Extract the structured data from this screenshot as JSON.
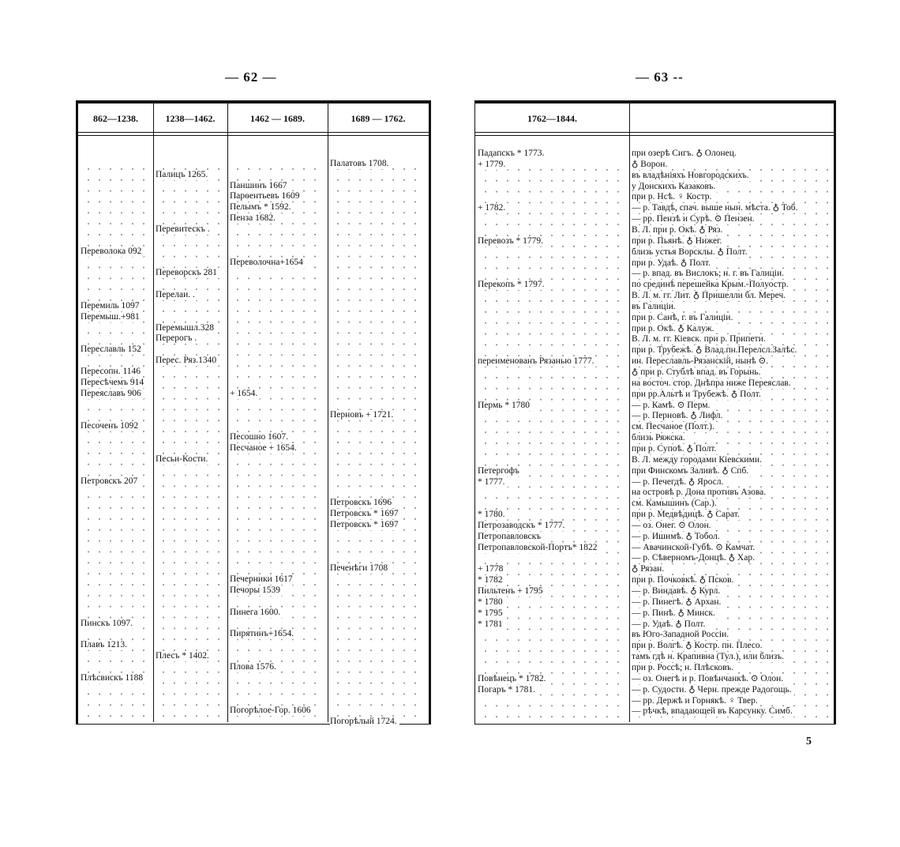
{
  "left_page": {
    "page_number": "— 62 —",
    "table": {
      "headers": [
        "862—1238.",
        "1238—1462.",
        "1462 — 1689.",
        "1689 — 1762."
      ],
      "rows": [
        null,
        [
          null,
          null,
          null,
          "Палатовъ 1708."
        ],
        [
          null,
          "Палицъ 1265.",
          null,
          null
        ],
        [
          null,
          null,
          "Паншинъ 1667",
          null
        ],
        [
          null,
          null,
          "Парѳентьевъ 1609",
          null
        ],
        [
          null,
          null,
          "Пелымъ * 1592.",
          null
        ],
        [
          null,
          null,
          "Пенза 1682.",
          null
        ],
        [
          null,
          "Перевитескъ .",
          null,
          null
        ],
        null,
        [
          "Переволока 092",
          null,
          null,
          null
        ],
        [
          null,
          null,
          "Переволочна+1654",
          null
        ],
        [
          null,
          "Переворскъ 281",
          null,
          null
        ],
        null,
        [
          null,
          "Перелаи. .",
          null,
          null
        ],
        [
          "Перемиль 1097",
          null,
          null,
          null
        ],
        [
          "Перемыш.+981",
          null,
          null,
          null
        ],
        [
          null,
          "Перемышл.328",
          null,
          null
        ],
        [
          null,
          "Перерогъ .",
          null,
          null
        ],
        [
          "Переславль 152",
          null,
          null,
          null
        ],
        [
          null,
          "Перес. Ряз.1340",
          null,
          null
        ],
        [
          "Пересопн. 1146",
          null,
          null,
          null
        ],
        [
          "Пересѣчемъ 914",
          null,
          null,
          null
        ],
        [
          "Переяславъ 906",
          null,
          "+ 1654.",
          null
        ],
        null,
        [
          null,
          null,
          null,
          "Перновъ + 1721."
        ],
        [
          "Песоченъ 1092",
          null,
          null,
          null
        ],
        [
          null,
          null,
          "Песошно 1607.",
          null
        ],
        [
          null,
          null,
          "Песчаное + 1654.",
          null
        ],
        [
          null,
          "Песьи-Кости.",
          null,
          null
        ],
        null,
        [
          "Петровскъ 207",
          null,
          null,
          null
        ],
        null,
        [
          null,
          null,
          null,
          "Петровскъ 1696"
        ],
        [
          null,
          null,
          null,
          "Петровскъ * 1697"
        ],
        [
          null,
          null,
          null,
          "Петровскъ * 1697"
        ],
        null,
        null,
        null,
        [
          null,
          null,
          null,
          "Печенѣги 1708"
        ],
        [
          null,
          null,
          "Печерники 1617",
          null
        ],
        [
          null,
          null,
          "Печоры 1539",
          null
        ],
        null,
        [
          null,
          null,
          "Пинега 1600.",
          null
        ],
        [
          "Пинскъ 1097.",
          null,
          null,
          null
        ],
        [
          null,
          null,
          "Пирятинъ+1654.",
          null
        ],
        [
          "Плавъ 1213.",
          null,
          null,
          null
        ],
        [
          null,
          "Плесъ * 1402.",
          null,
          null
        ],
        [
          null,
          null,
          "Плова 1576.",
          null
        ],
        [
          "Плѣсвискъ 1188",
          null,
          null,
          null
        ],
        null,
        null,
        [
          null,
          null,
          "Погорѣлое-Гор. 1606",
          null
        ],
        [
          null,
          null,
          null,
          "Погорѣлый 1724."
        ]
      ]
    }
  },
  "right_page": {
    "page_number": "— 63 --",
    "table": {
      "headers": [
        "1762—1844."
      ],
      "rows": [
        [
          "Падапскъ * 1773.",
          "при озерѣ Сигъ. ♁ Олонец."
        ],
        [
          "+ 1779.",
          "♁ Ворон."
        ],
        [
          null,
          "въ владѣніяхъ Новгородскихъ."
        ],
        [
          null,
          "у Донскихъ Казаковъ."
        ],
        [
          null,
          "при р. Нсѣ. ♀ Костр."
        ],
        [
          "+ 1782.",
          "— р. Тавдѣ, спач. выше нын. мѣста. ♁ Тоб."
        ],
        [
          null,
          "— рр. Пензѣ и Сурѣ. ⊙ Пензен."
        ],
        [
          null,
          "В. Л. при р. Окѣ. ♁ Ряз."
        ],
        [
          "Перевозъ * 1779.",
          "при р. Пьянѣ. ♁ Нижег."
        ],
        [
          null,
          "близь устья Ворсклы. ♁ Полт."
        ],
        [
          null,
          "при р. Удаѣ. ♁ Полт."
        ],
        [
          null,
          "— р. впад. въ Вислокъ; н. г. въ Галиціи."
        ],
        [
          "Перекопъ * 1797.",
          "по срединѣ перешейка Крым.-Полуостр."
        ],
        [
          null,
          "В. Л. м. гг. Лит. ♁ Пришелли бл. Мереч."
        ],
        [
          null,
          "въ Галиціи."
        ],
        [
          null,
          "при р. Санѣ, г. въ Галиціи."
        ],
        [
          null,
          "при р. Окѣ. ♁ Калуж."
        ],
        [
          null,
          "В. Л. м. гг. Кіевск. при р. Припети."
        ],
        [
          null,
          "при р. Трубежѣ. ♁ Влад.пн.Перелсл.Залѣс."
        ],
        [
          "переименованъ Рязанью 1777.",
          "ин. Переславль-Рязанскій, нынѣ ⊙."
        ],
        [
          null,
          "♁ при р. Стублѣ впад. въ Горынь."
        ],
        [
          null,
          "на восточ. стор. Днѣпра ниже Переяслав."
        ],
        [
          null,
          "при рр.Альтѣ и Трубежѣ. ♁ Полт."
        ],
        [
          "Пермь * 1780",
          "— р. Камѣ. ⊙ Перм."
        ],
        [
          null,
          "— р. Перновѣ. ♁ Лифл."
        ],
        [
          null,
          "см. Песчаное (Полт.)."
        ],
        [
          null,
          "близь Ряжска."
        ],
        [
          null,
          "при р. Супоѣ. ♁ Полт."
        ],
        [
          null,
          "В. Л. между городами Кіевскими."
        ],
        [
          "Петергофъ",
          "при Финскомъ Заливѣ. ♁ Спб."
        ],
        [
          "* 1777.",
          "— р. Печегдѣ. ♁ Яросл."
        ],
        [
          null,
          "на островѣ р. Дона противъ Азова."
        ],
        [
          null,
          "см. Камышинъ (Сар.)."
        ],
        [
          "* 1780.",
          "при р. Медвѣдицѣ. ♁ Сарат."
        ],
        [
          "Петрозаводскъ * 1777.",
          "— оз. Онег. ⊙ Олон."
        ],
        [
          "Петропавловскъ",
          "— р. Ишимѣ. ♁ Тобол."
        ],
        [
          "Петропавловской-Портъ* 1822",
          "— Авачинской-Губѣ. ⊙ Камчат."
        ],
        [
          null,
          "— р. Сѣверномъ-Донцѣ. ♁ Хар."
        ],
        [
          "+ 1778",
          "♁ Рязан."
        ],
        [
          "* 1782",
          "при р. Почковкѣ. ♁ Псков."
        ],
        [
          "Пильтенъ + 1795",
          "— р. Виндавѣ. ♁ Курл."
        ],
        [
          "* 1780",
          "— р. Пинегѣ. ♁ Архан."
        ],
        [
          "* 1795",
          "— р. Пинѣ. ♁ Минск."
        ],
        [
          "* 1781",
          "— р. Удаѣ. ♁ Полт."
        ],
        [
          null,
          "въ Юго-Западной Россіи."
        ],
        [
          null,
          "при р. Волгѣ. ♁ Костр. пн. Плесо."
        ],
        [
          null,
          "тамъ гдѣ н. Крапивна (Тул.), или близъ."
        ],
        [
          null,
          "при р. Россѣ; н. Плѣсковъ."
        ],
        [
          "Повѣнецъ * 1782.",
          "— оз. Онегѣ и р. Повѣнчанкѣ. ⊙ Олон."
        ],
        [
          "Погаръ * 1781.",
          "— р. Судости. ♁ Черн. прежде Радогощь."
        ],
        [
          null,
          "— рр. Держѣ и Горнякѣ. ♀ Твер."
        ],
        [
          null,
          "— рѣчкѣ, впадающей въ Карсунку. Симб."
        ]
      ]
    }
  },
  "footer": {
    "signature": "5"
  }
}
